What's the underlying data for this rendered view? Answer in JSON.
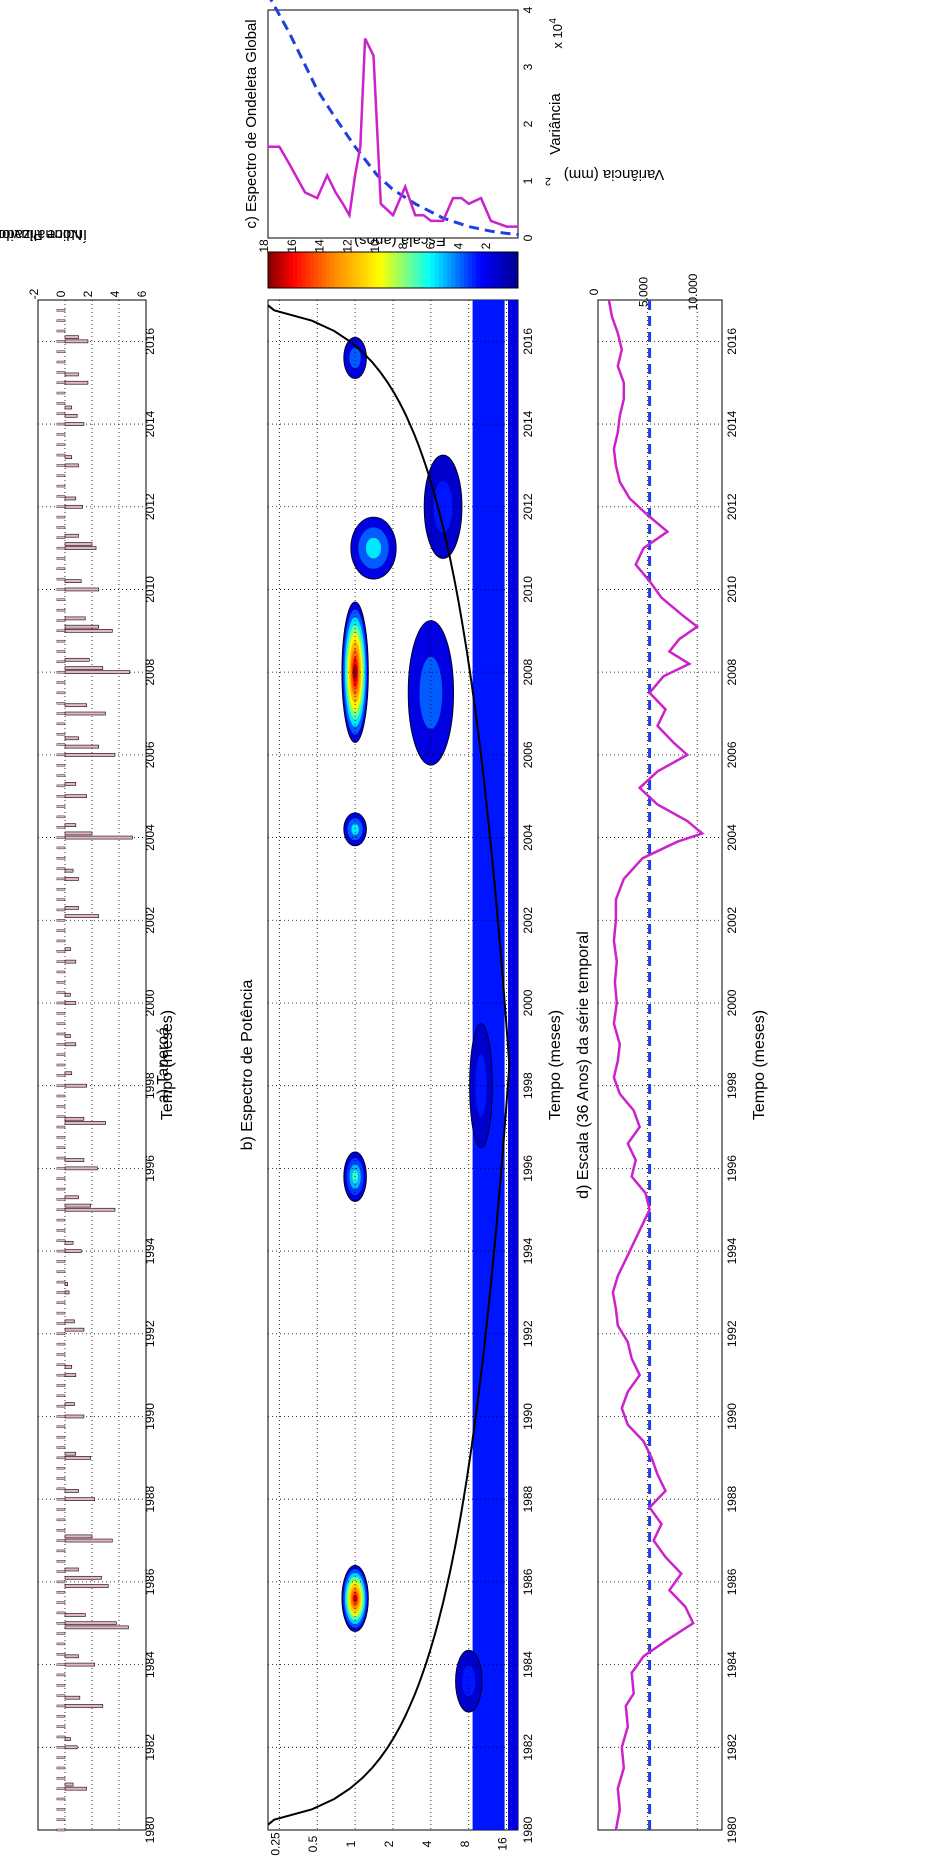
{
  "chart_data": [
    {
      "id": "a",
      "type": "bar",
      "title": "a) Taperoá",
      "xlabel": "Tempo (meses)",
      "ylabel": "Índice Pluviométrico",
      "ylabel2": "Normalizado",
      "xlim": [
        1980,
        2017
      ],
      "ylim": [
        -2,
        6
      ],
      "x_ticks": [
        "1980",
        "1982",
        "1984",
        "1986",
        "1988",
        "1990",
        "1992",
        "1994",
        "1996",
        "1998",
        "2000",
        "2002",
        "2004",
        "2006",
        "2008",
        "2010",
        "2012",
        "2014",
        "2016"
      ],
      "y_ticks": [
        "-2",
        "0",
        "2",
        "4",
        "6"
      ],
      "grid": true,
      "colors": {
        "bar_fill": "#e8b4c8",
        "bar_edge": "#000000"
      },
      "x": [
        1981.0,
        1981.1,
        1982.0,
        1982.2,
        1983.0,
        1983.2,
        1984.0,
        1984.2,
        1984.9,
        1985.0,
        1985.2,
        1985.9,
        1986.1,
        1986.3,
        1987.0,
        1987.1,
        1988.0,
        1988.2,
        1989.0,
        1989.1,
        1990.0,
        1990.3,
        1991.0,
        1991.2,
        1992.1,
        1992.3,
        1993.0,
        1993.2,
        1994.0,
        1994.2,
        1995.0,
        1995.1,
        1995.3,
        1996.0,
        1996.2,
        1997.1,
        1997.2,
        1998.0,
        1998.3,
        1999.0,
        1999.2,
        2000.0,
        2000.2,
        2001.0,
        2001.3,
        2002.1,
        2002.3,
        2003.0,
        2003.2,
        2004.0,
        2004.1,
        2004.3,
        2005.0,
        2005.3,
        2006.0,
        2006.2,
        2006.4,
        2007.0,
        2007.2,
        2008.0,
        2008.1,
        2008.3,
        2009.0,
        2009.1,
        2009.3,
        2010.0,
        2010.2,
        2011.0,
        2011.1,
        2011.3,
        2012.0,
        2012.2,
        2013.0,
        2013.2,
        2014.0,
        2014.2,
        2014.4,
        2015.0,
        2015.2,
        2016.0,
        2016.1
      ],
      "values": [
        1.6,
        0.6,
        0.9,
        0.4,
        2.8,
        1.1,
        2.2,
        1.0,
        4.7,
        3.8,
        1.5,
        3.2,
        2.7,
        1.0,
        3.5,
        2.0,
        2.2,
        1.0,
        1.9,
        0.8,
        1.4,
        0.7,
        0.8,
        0.5,
        1.4,
        0.7,
        0.3,
        0.2,
        1.2,
        0.6,
        3.7,
        1.9,
        1.0,
        2.4,
        1.4,
        3.0,
        1.4,
        1.6,
        0.5,
        0.8,
        0.4,
        0.8,
        0.4,
        0.8,
        0.4,
        2.5,
        1.0,
        1.0,
        0.6,
        5.0,
        2.0,
        0.8,
        1.6,
        0.8,
        3.7,
        2.5,
        1.0,
        3.0,
        1.6,
        4.8,
        2.8,
        1.8,
        3.5,
        2.5,
        1.5,
        2.5,
        1.2,
        2.3,
        2.0,
        1.0,
        1.3,
        0.8,
        1.0,
        0.5,
        1.4,
        0.9,
        0.5,
        1.7,
        1.0,
        1.7,
        1.0
      ]
    },
    {
      "id": "b",
      "type": "heatmap",
      "title": "b) Espectro de Potência",
      "xlabel": "Tempo (meses)",
      "ylabel": "Escala (anos)",
      "xlim": [
        1980,
        2017
      ],
      "y_log2_range": [
        -2.3,
        4.3
      ],
      "x_ticks": [
        "1980",
        "1982",
        "1984",
        "1986",
        "1988",
        "1990",
        "1992",
        "1994",
        "1996",
        "1998",
        "2000",
        "2002",
        "2004",
        "2006",
        "2008",
        "2010",
        "2012",
        "2014",
        "2016"
      ],
      "y_ticks": [
        "0.25",
        "0.5",
        "1",
        "2",
        "4",
        "8",
        "16"
      ],
      "colorbar_ticks": [
        "2",
        "4",
        "6",
        "8",
        "10",
        "12",
        "14",
        "16",
        "18"
      ],
      "colorbar_range": [
        0,
        18
      ],
      "grid": true,
      "blobs": [
        {
          "x": 1985.6,
          "scale": 1.0,
          "width": 1.6,
          "height": 0.35,
          "peak": 17
        },
        {
          "x": 2008.0,
          "scale": 1.0,
          "width": 3.4,
          "height": 0.35,
          "peak": 18
        },
        {
          "x": 1995.8,
          "scale": 1.0,
          "width": 1.2,
          "height": 0.3,
          "peak": 7
        },
        {
          "x": 2004.2,
          "scale": 1.0,
          "width": 0.8,
          "height": 0.3,
          "peak": 6
        },
        {
          "x": 2011.0,
          "scale": 1.4,
          "width": 1.5,
          "height": 0.6,
          "peak": 6
        },
        {
          "x": 2015.6,
          "scale": 1.0,
          "width": 1.0,
          "height": 0.3,
          "peak": 4
        },
        {
          "x": 1983.6,
          "scale": 8.0,
          "width": 1.5,
          "height": 0.35,
          "peak": 3
        },
        {
          "x": 1998.0,
          "scale": 10.0,
          "width": 3.0,
          "height": 0.3,
          "peak": 3
        },
        {
          "x": 2007.5,
          "scale": 4.0,
          "width": 3.5,
          "height": 0.6,
          "peak": 4
        },
        {
          "x": 2012.0,
          "scale": 5.0,
          "width": 2.5,
          "height": 0.5,
          "peak": 3
        }
      ],
      "bands": [
        {
          "scale": 11.5,
          "x_from": 1980,
          "x_to": 2017,
          "level": 3
        },
        {
          "scale": 22.0,
          "x_from": 1980,
          "x_to": 2017,
          "level": 2
        }
      ]
    },
    {
      "id": "c",
      "type": "line",
      "title": "c) Espectro de Ondeleta Global",
      "xlabel": "Variância",
      "x_multiplier": "x 10",
      "x_multiplier_exp": "4",
      "xlim": [
        0,
        4
      ],
      "y_log2_range": [
        -2.3,
        4.3
      ],
      "x_ticks": [
        "0",
        "1",
        "2",
        "3",
        "4"
      ],
      "colors": {
        "spectrum": "#cc22cc",
        "significance": "#1f3fe0"
      },
      "spectrum": {
        "scale": [
          0.2,
          0.25,
          0.3,
          0.4,
          0.5,
          0.6,
          0.7,
          0.8,
          0.9,
          1.0,
          1.1,
          1.2,
          1.4,
          1.6,
          2.0,
          2.5,
          3.0,
          3.5,
          4.0,
          5.0,
          6.0,
          7.0,
          8.0,
          10.0,
          12.0,
          16.0,
          20.0
        ],
        "variance": [
          1.6,
          1.6,
          1.3,
          0.8,
          0.7,
          1.1,
          0.8,
          0.6,
          0.4,
          1.1,
          1.6,
          3.5,
          3.2,
          0.6,
          0.4,
          0.9,
          0.4,
          0.4,
          0.3,
          0.3,
          0.7,
          0.7,
          0.6,
          0.7,
          0.3,
          0.2,
          0.2
        ]
      },
      "significance": {
        "scale": [
          0.2,
          0.3,
          0.5,
          0.7,
          1.0,
          1.5,
          2.0,
          3.0,
          5.0,
          8.0,
          12.0,
          16.0,
          20.0
        ],
        "variance": [
          4.3,
          3.6,
          2.6,
          2.1,
          1.6,
          1.1,
          0.85,
          0.6,
          0.35,
          0.2,
          0.12,
          0.08,
          0.06
        ]
      }
    },
    {
      "id": "d",
      "type": "line",
      "title": "d) Escala (36 Anos) da série temporal",
      "xlabel": "Tempo (meses)",
      "ylabel": "Variância (mm)",
      "ylabel_sup": "2",
      "xlim": [
        1980,
        2017
      ],
      "ylim": [
        0,
        12500
      ],
      "x_ticks": [
        "1980",
        "1982",
        "1984",
        "1986",
        "1988",
        "1990",
        "1992",
        "1994",
        "1996",
        "1998",
        "2000",
        "2002",
        "2004",
        "2006",
        "2008",
        "2010",
        "2012",
        "2014",
        "2016"
      ],
      "y_ticks": [
        "0",
        "5.000",
        "10.000"
      ],
      "grid": true,
      "colors": {
        "series": "#cc22cc",
        "reference": "#1f3fe0"
      },
      "reference_level": 5200,
      "x": [
        1980.0,
        1980.5,
        1981.0,
        1981.5,
        1982.0,
        1982.5,
        1983.0,
        1983.3,
        1983.8,
        1984.2,
        1984.6,
        1985.0,
        1985.4,
        1985.8,
        1986.2,
        1986.6,
        1987.0,
        1987.4,
        1987.8,
        1988.2,
        1988.6,
        1989.0,
        1989.4,
        1989.8,
        1990.2,
        1990.6,
        1991.0,
        1991.4,
        1991.8,
        1992.2,
        1992.6,
        1993.0,
        1993.4,
        1993.8,
        1994.2,
        1994.6,
        1995.0,
        1995.4,
        1995.8,
        1996.2,
        1996.6,
        1997.0,
        1997.4,
        1997.8,
        1998.2,
        1998.6,
        1999.0,
        1999.5,
        2000.0,
        2000.5,
        2001.0,
        2001.5,
        2002.0,
        2002.5,
        2003.0,
        2003.5,
        2003.9,
        2004.1,
        2004.4,
        2004.8,
        2005.2,
        2005.6,
        2006.0,
        2006.3,
        2006.7,
        2007.1,
        2007.5,
        2007.9,
        2008.2,
        2008.5,
        2008.8,
        2009.1,
        2009.4,
        2009.8,
        2010.2,
        2010.6,
        2011.0,
        2011.4,
        2011.8,
        2012.2,
        2012.6,
        2013.0,
        2013.4,
        2013.8,
        2014.2,
        2014.6,
        2015.0,
        2015.4,
        2015.8,
        2016.2,
        2016.6,
        2017.0
      ],
      "values": [
        1800,
        2200,
        2000,
        2600,
        2400,
        3000,
        2800,
        3600,
        3400,
        4600,
        7000,
        9600,
        8800,
        7200,
        8400,
        6800,
        5600,
        6400,
        5200,
        6800,
        6000,
        5400,
        4600,
        3000,
        2400,
        3000,
        4200,
        3400,
        3000,
        2000,
        1800,
        1500,
        2000,
        2800,
        3600,
        4400,
        5200,
        4800,
        3400,
        3800,
        3000,
        4200,
        3600,
        2200,
        1600,
        2000,
        2200,
        1600,
        1900,
        1700,
        1900,
        1600,
        1800,
        1800,
        2600,
        4500,
        8000,
        10500,
        9000,
        6000,
        4200,
        6000,
        9000,
        7600,
        6000,
        6800,
        5200,
        6600,
        9200,
        7200,
        8200,
        10000,
        8400,
        6400,
        5200,
        3800,
        4600,
        7000,
        5000,
        3200,
        2200,
        1800,
        1600,
        2000,
        2200,
        2600,
        2600,
        2000,
        2400,
        2000,
        1400,
        1100
      ]
    }
  ]
}
